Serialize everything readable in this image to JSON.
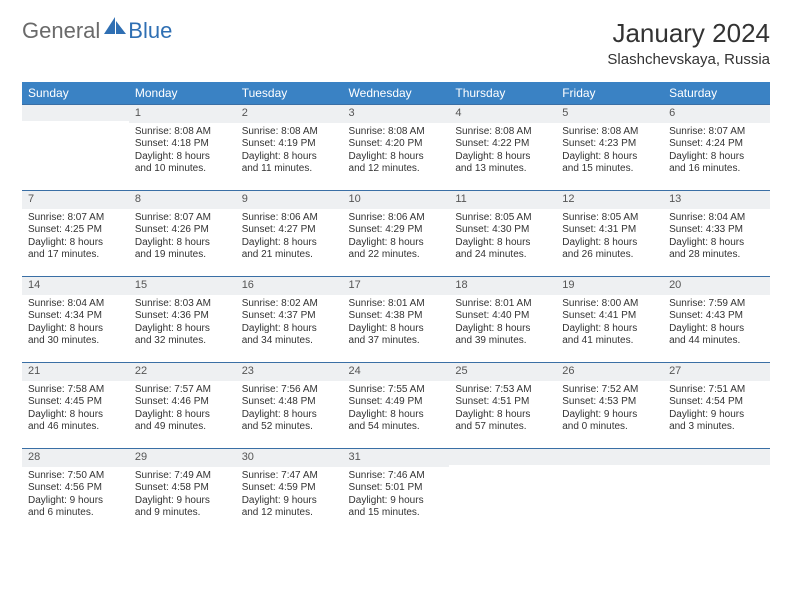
{
  "brand": {
    "text_general": "General",
    "text_blue": "Blue",
    "sail_color": "#2f6fb3"
  },
  "title": "January 2024",
  "location": "Slashchevskaya, Russia",
  "day_headers": [
    "Sunday",
    "Monday",
    "Tuesday",
    "Wednesday",
    "Thursday",
    "Friday",
    "Saturday"
  ],
  "style": {
    "header_bg": "#3a82c4",
    "header_text": "#ffffff",
    "cell_border": "#3a6fa5",
    "daynum_bg": "#eef0f2",
    "body_text": "#333333",
    "page_bg": "#ffffff",
    "title_fontsize": 26,
    "location_fontsize": 15,
    "th_fontsize": 12,
    "cell_fontsize": 10
  },
  "weeks": [
    [
      {
        "empty": true
      },
      {
        "n": "1",
        "sr": "Sunrise: 8:08 AM",
        "ss": "Sunset: 4:18 PM",
        "d1": "Daylight: 8 hours",
        "d2": "and 10 minutes."
      },
      {
        "n": "2",
        "sr": "Sunrise: 8:08 AM",
        "ss": "Sunset: 4:19 PM",
        "d1": "Daylight: 8 hours",
        "d2": "and 11 minutes."
      },
      {
        "n": "3",
        "sr": "Sunrise: 8:08 AM",
        "ss": "Sunset: 4:20 PM",
        "d1": "Daylight: 8 hours",
        "d2": "and 12 minutes."
      },
      {
        "n": "4",
        "sr": "Sunrise: 8:08 AM",
        "ss": "Sunset: 4:22 PM",
        "d1": "Daylight: 8 hours",
        "d2": "and 13 minutes."
      },
      {
        "n": "5",
        "sr": "Sunrise: 8:08 AM",
        "ss": "Sunset: 4:23 PM",
        "d1": "Daylight: 8 hours",
        "d2": "and 15 minutes."
      },
      {
        "n": "6",
        "sr": "Sunrise: 8:07 AM",
        "ss": "Sunset: 4:24 PM",
        "d1": "Daylight: 8 hours",
        "d2": "and 16 minutes."
      }
    ],
    [
      {
        "n": "7",
        "sr": "Sunrise: 8:07 AM",
        "ss": "Sunset: 4:25 PM",
        "d1": "Daylight: 8 hours",
        "d2": "and 17 minutes."
      },
      {
        "n": "8",
        "sr": "Sunrise: 8:07 AM",
        "ss": "Sunset: 4:26 PM",
        "d1": "Daylight: 8 hours",
        "d2": "and 19 minutes."
      },
      {
        "n": "9",
        "sr": "Sunrise: 8:06 AM",
        "ss": "Sunset: 4:27 PM",
        "d1": "Daylight: 8 hours",
        "d2": "and 21 minutes."
      },
      {
        "n": "10",
        "sr": "Sunrise: 8:06 AM",
        "ss": "Sunset: 4:29 PM",
        "d1": "Daylight: 8 hours",
        "d2": "and 22 minutes."
      },
      {
        "n": "11",
        "sr": "Sunrise: 8:05 AM",
        "ss": "Sunset: 4:30 PM",
        "d1": "Daylight: 8 hours",
        "d2": "and 24 minutes."
      },
      {
        "n": "12",
        "sr": "Sunrise: 8:05 AM",
        "ss": "Sunset: 4:31 PM",
        "d1": "Daylight: 8 hours",
        "d2": "and 26 minutes."
      },
      {
        "n": "13",
        "sr": "Sunrise: 8:04 AM",
        "ss": "Sunset: 4:33 PM",
        "d1": "Daylight: 8 hours",
        "d2": "and 28 minutes."
      }
    ],
    [
      {
        "n": "14",
        "sr": "Sunrise: 8:04 AM",
        "ss": "Sunset: 4:34 PM",
        "d1": "Daylight: 8 hours",
        "d2": "and 30 minutes."
      },
      {
        "n": "15",
        "sr": "Sunrise: 8:03 AM",
        "ss": "Sunset: 4:36 PM",
        "d1": "Daylight: 8 hours",
        "d2": "and 32 minutes."
      },
      {
        "n": "16",
        "sr": "Sunrise: 8:02 AM",
        "ss": "Sunset: 4:37 PM",
        "d1": "Daylight: 8 hours",
        "d2": "and 34 minutes."
      },
      {
        "n": "17",
        "sr": "Sunrise: 8:01 AM",
        "ss": "Sunset: 4:38 PM",
        "d1": "Daylight: 8 hours",
        "d2": "and 37 minutes."
      },
      {
        "n": "18",
        "sr": "Sunrise: 8:01 AM",
        "ss": "Sunset: 4:40 PM",
        "d1": "Daylight: 8 hours",
        "d2": "and 39 minutes."
      },
      {
        "n": "19",
        "sr": "Sunrise: 8:00 AM",
        "ss": "Sunset: 4:41 PM",
        "d1": "Daylight: 8 hours",
        "d2": "and 41 minutes."
      },
      {
        "n": "20",
        "sr": "Sunrise: 7:59 AM",
        "ss": "Sunset: 4:43 PM",
        "d1": "Daylight: 8 hours",
        "d2": "and 44 minutes."
      }
    ],
    [
      {
        "n": "21",
        "sr": "Sunrise: 7:58 AM",
        "ss": "Sunset: 4:45 PM",
        "d1": "Daylight: 8 hours",
        "d2": "and 46 minutes."
      },
      {
        "n": "22",
        "sr": "Sunrise: 7:57 AM",
        "ss": "Sunset: 4:46 PM",
        "d1": "Daylight: 8 hours",
        "d2": "and 49 minutes."
      },
      {
        "n": "23",
        "sr": "Sunrise: 7:56 AM",
        "ss": "Sunset: 4:48 PM",
        "d1": "Daylight: 8 hours",
        "d2": "and 52 minutes."
      },
      {
        "n": "24",
        "sr": "Sunrise: 7:55 AM",
        "ss": "Sunset: 4:49 PM",
        "d1": "Daylight: 8 hours",
        "d2": "and 54 minutes."
      },
      {
        "n": "25",
        "sr": "Sunrise: 7:53 AM",
        "ss": "Sunset: 4:51 PM",
        "d1": "Daylight: 8 hours",
        "d2": "and 57 minutes."
      },
      {
        "n": "26",
        "sr": "Sunrise: 7:52 AM",
        "ss": "Sunset: 4:53 PM",
        "d1": "Daylight: 9 hours",
        "d2": "and 0 minutes."
      },
      {
        "n": "27",
        "sr": "Sunrise: 7:51 AM",
        "ss": "Sunset: 4:54 PM",
        "d1": "Daylight: 9 hours",
        "d2": "and 3 minutes."
      }
    ],
    [
      {
        "n": "28",
        "sr": "Sunrise: 7:50 AM",
        "ss": "Sunset: 4:56 PM",
        "d1": "Daylight: 9 hours",
        "d2": "and 6 minutes."
      },
      {
        "n": "29",
        "sr": "Sunrise: 7:49 AM",
        "ss": "Sunset: 4:58 PM",
        "d1": "Daylight: 9 hours",
        "d2": "and 9 minutes."
      },
      {
        "n": "30",
        "sr": "Sunrise: 7:47 AM",
        "ss": "Sunset: 4:59 PM",
        "d1": "Daylight: 9 hours",
        "d2": "and 12 minutes."
      },
      {
        "n": "31",
        "sr": "Sunrise: 7:46 AM",
        "ss": "Sunset: 5:01 PM",
        "d1": "Daylight: 9 hours",
        "d2": "and 15 minutes."
      },
      {
        "empty": true
      },
      {
        "empty": true
      },
      {
        "empty": true
      }
    ]
  ]
}
